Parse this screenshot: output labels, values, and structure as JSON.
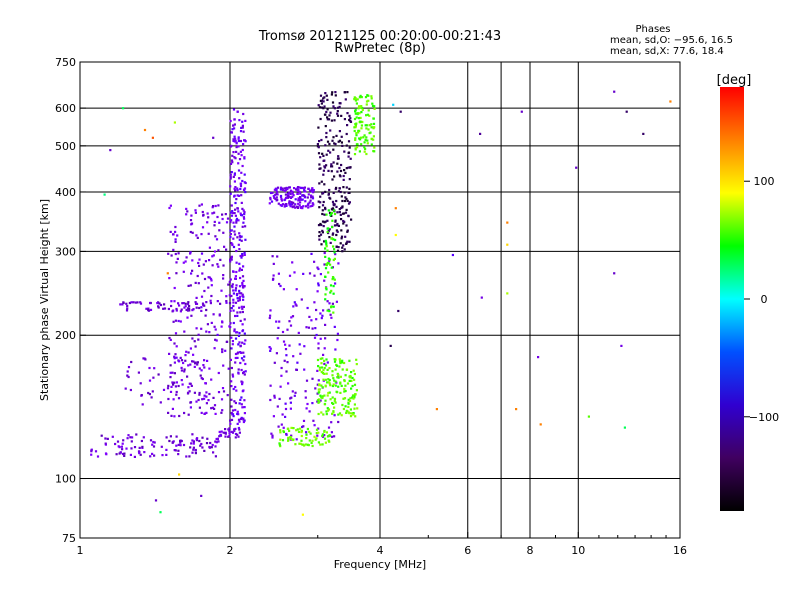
{
  "chart_data": {
    "type": "scatter",
    "title": "Tromsø 20121125 00:20:00-00:21:43",
    "subtitle": "RwPretec (8p)",
    "xlabel": "Frequency [MHz]",
    "ylabel": "Stationary phase Virtual Height [km]",
    "xscale": "log",
    "yscale": "log",
    "xlim": [
      1,
      16
    ],
    "ylim": [
      75,
      750
    ],
    "xticks": [
      1,
      2,
      4,
      6,
      8,
      10,
      16
    ],
    "xtick_labels": [
      "1",
      "2",
      "4",
      "6",
      "8",
      "10",
      "16"
    ],
    "xgrid": [
      2,
      4,
      6,
      7,
      8,
      10
    ],
    "yticks": [
      75,
      100,
      200,
      300,
      400,
      500,
      600,
      750
    ],
    "ytick_labels": [
      "75",
      "100",
      "200",
      "300",
      "400",
      "500",
      "600",
      "750"
    ],
    "ygrid": [
      100,
      200,
      300,
      400,
      500,
      600
    ],
    "grid": true,
    "stats": {
      "heading": "Phases",
      "line_o": "mean, sd,O: −95.6, 16.5",
      "line_x": "mean, sd,X:  77.6, 18.4"
    },
    "colorbar": {
      "label": "[deg]",
      "range": [
        -180,
        180
      ],
      "ticks": [
        100,
        0,
        -100
      ],
      "tick_labels": [
        "100",
        "0",
        "−100"
      ],
      "colors": [
        "#ff0000",
        "#ff8000",
        "#ffff00",
        "#00ff00",
        "#00ffff",
        "#0050ff",
        "#3000d0",
        "#400060",
        "#000000"
      ]
    },
    "clusters": [
      {
        "name": "O trace low band",
        "x": [
          1.05,
          1.9
        ],
        "y": [
          111,
          124
        ],
        "phase": -105,
        "n": 120
      },
      {
        "name": "O trace low-height rise",
        "x": [
          1.9,
          2.1
        ],
        "y": [
          122,
          128
        ],
        "phase": -100,
        "n": 30
      },
      {
        "name": "F1 cusp column",
        "x": [
          2.0,
          2.15
        ],
        "y": [
          130,
          600
        ],
        "phase": -92,
        "n": 320
      },
      {
        "name": "diffuse O echoes",
        "x": [
          1.5,
          2.0
        ],
        "y": [
          135,
          380
        ],
        "phase": -100,
        "n": 260
      },
      {
        "name": "230 km O band",
        "x": [
          1.2,
          1.8
        ],
        "y": [
          225,
          235
        ],
        "phase": -108,
        "n": 60
      },
      {
        "name": "E-region bands",
        "x": [
          1.2,
          1.8
        ],
        "y": [
          140,
          180
        ],
        "phase": -105,
        "n": 60
      },
      {
        "name": "F2 O trace 370-410",
        "x": [
          2.4,
          2.95
        ],
        "y": [
          370,
          410
        ],
        "phase": -95,
        "n": 150
      },
      {
        "name": "F2 O cusp",
        "x": [
          3.0,
          3.5
        ],
        "y": [
          300,
          650
        ],
        "phase": -160,
        "n": 260
      },
      {
        "name": "mid O echoes",
        "x": [
          2.4,
          3.3
        ],
        "y": [
          120,
          300
        ],
        "phase": -95,
        "n": 180
      },
      {
        "name": "X trace low",
        "x": [
          2.5,
          3.2
        ],
        "y": [
          117,
          128
        ],
        "phase": 85,
        "n": 70
      },
      {
        "name": "X trace cluster",
        "x": [
          3.0,
          3.6
        ],
        "y": [
          135,
          180
        ],
        "phase": 80,
        "n": 170
      },
      {
        "name": "X trace vertical",
        "x": [
          3.1,
          3.25
        ],
        "y": [
          220,
          380
        ],
        "phase": 70,
        "n": 60
      },
      {
        "name": "X F2 cusp",
        "x": [
          3.55,
          3.9
        ],
        "y": [
          480,
          640
        ],
        "phase": 80,
        "n": 110
      }
    ],
    "sparse_points": [
      {
        "x": 1.22,
        "y": 600,
        "phase": 40
      },
      {
        "x": 1.35,
        "y": 540,
        "phase": 150
      },
      {
        "x": 1.4,
        "y": 520,
        "phase": 160
      },
      {
        "x": 1.55,
        "y": 560,
        "phase": 100
      },
      {
        "x": 1.15,
        "y": 490,
        "phase": -110
      },
      {
        "x": 1.85,
        "y": 520,
        "phase": -110
      },
      {
        "x": 1.12,
        "y": 395,
        "phase": 30
      },
      {
        "x": 1.5,
        "y": 270,
        "phase": 150
      },
      {
        "x": 4.25,
        "y": 610,
        "phase": -10
      },
      {
        "x": 4.4,
        "y": 590,
        "phase": -150
      },
      {
        "x": 4.3,
        "y": 370,
        "phase": 150
      },
      {
        "x": 4.3,
        "y": 325,
        "phase": 120
      },
      {
        "x": 4.35,
        "y": 225,
        "phase": -150
      },
      {
        "x": 4.2,
        "y": 190,
        "phase": -160
      },
      {
        "x": 5.6,
        "y": 295,
        "phase": -80
      },
      {
        "x": 6.35,
        "y": 530,
        "phase": -130
      },
      {
        "x": 6.4,
        "y": 240,
        "phase": -100
      },
      {
        "x": 7.2,
        "y": 345,
        "phase": 150
      },
      {
        "x": 7.2,
        "y": 310,
        "phase": 130
      },
      {
        "x": 7.2,
        "y": 245,
        "phase": 100
      },
      {
        "x": 7.5,
        "y": 140,
        "phase": 150
      },
      {
        "x": 7.7,
        "y": 590,
        "phase": -110
      },
      {
        "x": 8.3,
        "y": 180,
        "phase": -100
      },
      {
        "x": 8.4,
        "y": 130,
        "phase": 150
      },
      {
        "x": 9.9,
        "y": 450,
        "phase": -110
      },
      {
        "x": 10.5,
        "y": 135,
        "phase": 80
      },
      {
        "x": 11.8,
        "y": 650,
        "phase": -110
      },
      {
        "x": 11.8,
        "y": 270,
        "phase": -110
      },
      {
        "x": 12.2,
        "y": 190,
        "phase": -100
      },
      {
        "x": 12.5,
        "y": 590,
        "phase": -150
      },
      {
        "x": 12.4,
        "y": 128,
        "phase": 40
      },
      {
        "x": 13.5,
        "y": 530,
        "phase": -150
      },
      {
        "x": 15.3,
        "y": 620,
        "phase": 150
      },
      {
        "x": 5.2,
        "y": 140,
        "phase": 150
      },
      {
        "x": 1.42,
        "y": 90,
        "phase": -110
      },
      {
        "x": 1.45,
        "y": 85,
        "phase": 40
      },
      {
        "x": 1.75,
        "y": 92,
        "phase": -110
      },
      {
        "x": 1.58,
        "y": 102,
        "phase": 130
      },
      {
        "x": 2.8,
        "y": 84,
        "phase": 120
      }
    ]
  }
}
